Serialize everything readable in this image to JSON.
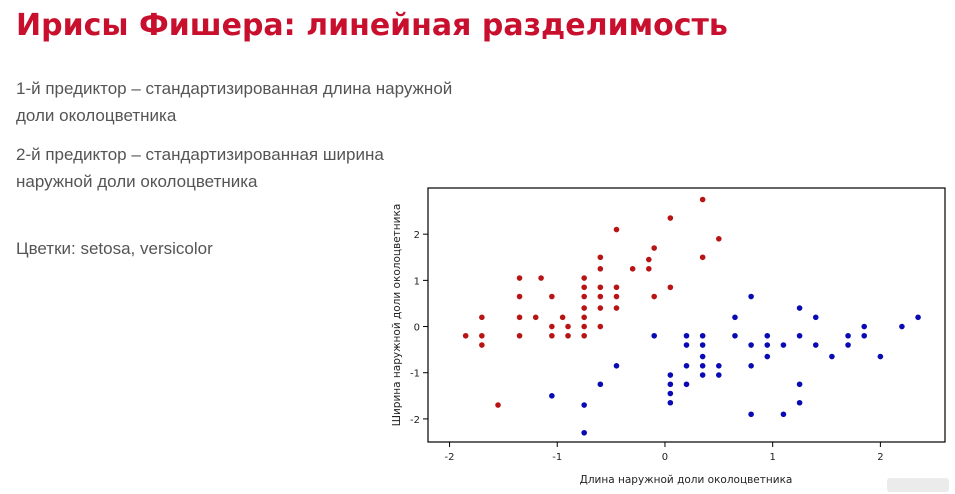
{
  "slide": {
    "title": "Ирисы Фишера: линейная разделимость",
    "predictor1": "1-й предиктор – стандартизированная длина наружной доли околоцветника",
    "predictor2": "2-й предиктор – стандартизированная ширина наружной доли околоцветника",
    "flowers": "Цветки: setosa, versicolor"
  },
  "colors": {
    "title": "#c8102e",
    "setosa": "#b81414",
    "versicolor": "#0a0ab4"
  },
  "chart_data": {
    "type": "scatter",
    "xlabel": "Длина наружной доли околоцветника",
    "ylabel": "Ширина наружной доли околоцветника",
    "xlim": [
      -2.2,
      2.6
    ],
    "ylim": [
      -2.5,
      3.0
    ],
    "xticks": [
      -2,
      -1,
      0,
      1,
      2
    ],
    "yticks": [
      -2,
      -1,
      0,
      1,
      2
    ],
    "series": [
      {
        "color": "#b81414",
        "points": [
          [
            -1.85,
            -0.2
          ],
          [
            -1.7,
            0.2
          ],
          [
            -1.7,
            -0.2
          ],
          [
            -1.7,
            -0.4
          ],
          [
            -1.55,
            -1.7
          ],
          [
            -1.35,
            1.05
          ],
          [
            -1.35,
            0.65
          ],
          [
            -1.35,
            0.2
          ],
          [
            -1.35,
            -0.2
          ],
          [
            -1.2,
            0.2
          ],
          [
            -1.15,
            1.05
          ],
          [
            -1.05,
            0.65
          ],
          [
            -1.05,
            0.0
          ],
          [
            -1.05,
            -0.2
          ],
          [
            -0.95,
            0.2
          ],
          [
            -0.9,
            0.0
          ],
          [
            -0.9,
            -0.2
          ],
          [
            -0.75,
            1.05
          ],
          [
            -0.75,
            0.85
          ],
          [
            -0.75,
            0.65
          ],
          [
            -0.75,
            0.4
          ],
          [
            -0.75,
            0.2
          ],
          [
            -0.75,
            0.0
          ],
          [
            -0.75,
            -0.2
          ],
          [
            -0.6,
            1.5
          ],
          [
            -0.6,
            1.25
          ],
          [
            -0.6,
            0.85
          ],
          [
            -0.6,
            0.65
          ],
          [
            -0.6,
            0.4
          ],
          [
            -0.6,
            0.0
          ],
          [
            -0.45,
            2.1
          ],
          [
            -0.45,
            0.85
          ],
          [
            -0.45,
            0.65
          ],
          [
            -0.45,
            0.4
          ],
          [
            -0.3,
            1.25
          ],
          [
            -0.15,
            1.45
          ],
          [
            -0.15,
            1.25
          ],
          [
            -0.1,
            1.7
          ],
          [
            -0.1,
            0.65
          ],
          [
            0.05,
            2.35
          ],
          [
            0.05,
            0.85
          ],
          [
            0.35,
            2.75
          ],
          [
            0.35,
            1.5
          ],
          [
            0.5,
            1.9
          ]
        ]
      },
      {
        "color": "#0a0ab4",
        "points": [
          [
            -1.05,
            -1.5
          ],
          [
            -0.75,
            -1.7
          ],
          [
            -0.75,
            -2.3
          ],
          [
            -0.6,
            -1.25
          ],
          [
            -0.45,
            -0.85
          ],
          [
            -0.1,
            -0.2
          ],
          [
            0.05,
            -1.05
          ],
          [
            0.05,
            -1.25
          ],
          [
            0.05,
            -1.45
          ],
          [
            0.05,
            -1.65
          ],
          [
            0.2,
            -0.2
          ],
          [
            0.2,
            -0.4
          ],
          [
            0.2,
            -0.85
          ],
          [
            0.2,
            -1.25
          ],
          [
            0.35,
            -0.2
          ],
          [
            0.35,
            -0.4
          ],
          [
            0.35,
            -0.65
          ],
          [
            0.35,
            -0.85
          ],
          [
            0.35,
            -1.05
          ],
          [
            0.5,
            -0.85
          ],
          [
            0.5,
            -1.05
          ],
          [
            0.65,
            0.2
          ],
          [
            0.65,
            -0.2
          ],
          [
            0.8,
            0.65
          ],
          [
            0.8,
            -0.4
          ],
          [
            0.8,
            -0.85
          ],
          [
            0.8,
            -1.9
          ],
          [
            0.95,
            -0.2
          ],
          [
            0.95,
            -0.4
          ],
          [
            0.95,
            -0.65
          ],
          [
            1.1,
            -0.4
          ],
          [
            1.1,
            -1.9
          ],
          [
            1.25,
            0.4
          ],
          [
            1.25,
            -1.25
          ],
          [
            1.25,
            -1.65
          ],
          [
            1.25,
            -0.2
          ],
          [
            1.4,
            0.2
          ],
          [
            1.4,
            -0.4
          ],
          [
            1.55,
            -0.65
          ],
          [
            1.7,
            -0.2
          ],
          [
            1.7,
            -0.4
          ],
          [
            1.85,
            0.0
          ],
          [
            1.85,
            -0.2
          ],
          [
            2.0,
            -0.65
          ],
          [
            2.2,
            0.0
          ],
          [
            2.35,
            0.2
          ]
        ]
      }
    ],
    "grid": false
  }
}
